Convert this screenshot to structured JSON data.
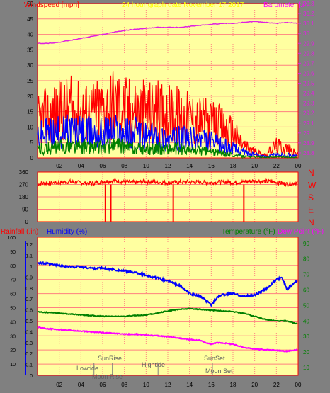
{
  "header": {
    "windspeed_label": "Windspeed [mph]",
    "graph_date": "24 hour graph date   November 17 2017",
    "barometer_label": "Barometer [.in]"
  },
  "colors": {
    "background": "#808080",
    "plot_bg": "#FFFFA0",
    "grid": "#FF8080",
    "wind_gust": "#FF0000",
    "wind_avg": "#0000FF",
    "wind_low": "#008000",
    "barometer": "#E020E0",
    "direction": "#FF0000",
    "humidity": "#0000FF",
    "temperature": "#008000",
    "dewpoint": "#FF00FF",
    "header_yellow": "#FFFF00",
    "header_red": "#FF0000",
    "header_magenta": "#FF00FF"
  },
  "chart_data": [
    {
      "type": "line",
      "name": "wind-barometer",
      "x_ticks": [
        "02",
        "04",
        "06",
        "08",
        "10",
        "12",
        "14",
        "16",
        "18",
        "20",
        "22",
        "00"
      ],
      "x_range_hours": [
        0,
        24
      ],
      "y_left_ticks": [
        "0",
        "5",
        "10",
        "15",
        "20",
        "25",
        "30",
        "35",
        "40",
        "45",
        "50"
      ],
      "y_left_range": [
        0,
        50
      ],
      "y_right_ticks": [
        "28.8",
        "28.9",
        "29",
        "29.1",
        "29.2",
        "29.3",
        "29.4",
        "29.5",
        "29.6",
        "29.7",
        "29.8",
        "29.9",
        "30",
        "30.1",
        "30.2",
        "30.3"
      ],
      "y_right_range": [
        28.75,
        30.3
      ],
      "barometer_series": {
        "x": [
          0,
          1,
          2,
          3,
          4,
          5,
          6,
          7,
          8,
          9,
          10,
          11,
          12,
          13,
          14,
          15,
          16,
          17,
          18,
          19,
          20,
          21,
          22,
          23,
          24
        ],
        "y": [
          29.9,
          29.9,
          29.91,
          29.93,
          29.95,
          29.97,
          29.99,
          30.01,
          30.03,
          30.04,
          30.05,
          30.06,
          30.06,
          30.06,
          30.07,
          30.08,
          30.09,
          30.1,
          30.1,
          30.11,
          30.12,
          30.11,
          30.1,
          30.11,
          30.1
        ]
      },
      "wind_series": [
        {
          "key": "gust",
          "x": [
            0,
            1,
            2,
            3,
            4,
            5,
            6,
            7,
            8,
            9,
            10,
            11,
            12,
            13,
            14,
            15,
            16,
            17,
            18,
            19,
            20,
            21,
            22,
            23,
            24
          ],
          "y": [
            12,
            14,
            15,
            16,
            15,
            15,
            16,
            18,
            16,
            16,
            15,
            15,
            14,
            14,
            13,
            12,
            11,
            10,
            8,
            4,
            2,
            1,
            4,
            3,
            1
          ]
        },
        {
          "key": "avg",
          "x": [
            0,
            1,
            2,
            3,
            4,
            5,
            6,
            7,
            8,
            9,
            10,
            11,
            12,
            13,
            14,
            15,
            16,
            17,
            18,
            19,
            20,
            21,
            22,
            23,
            24
          ],
          "y": [
            7,
            8,
            8,
            9,
            8,
            8,
            8,
            9,
            8,
            8,
            7,
            7,
            6,
            6,
            6,
            6,
            5,
            4,
            3,
            2,
            1,
            0.5,
            1,
            1,
            0.5
          ]
        },
        {
          "key": "low",
          "x": [
            0,
            1,
            2,
            3,
            4,
            5,
            6,
            7,
            8,
            9,
            10,
            11,
            12,
            13,
            14,
            15,
            16,
            17,
            18,
            19,
            20,
            21,
            22,
            23,
            24
          ],
          "y": [
            3,
            3,
            3.5,
            4,
            3.5,
            3.5,
            3.5,
            4,
            3.5,
            3,
            3,
            3,
            3,
            3,
            2.5,
            2.5,
            2,
            1.5,
            1,
            0.5,
            0.3,
            0.2,
            0.3,
            0.2,
            0.2
          ]
        }
      ]
    },
    {
      "type": "line",
      "name": "wind-direction",
      "y_ticks": [
        "0",
        "90",
        "180",
        "270",
        "360"
      ],
      "y_range": [
        0,
        360
      ],
      "compass_labels": [
        "N",
        "W",
        "S",
        "E",
        "N"
      ],
      "series": {
        "x": [
          0,
          1,
          2,
          3,
          4,
          5,
          6,
          7,
          8,
          9,
          10,
          11,
          12,
          13,
          14,
          15,
          16,
          17,
          18,
          19,
          20,
          21,
          22,
          23,
          24
        ],
        "y": [
          275,
          280,
          285,
          290,
          282,
          278,
          290,
          298,
          288,
          285,
          290,
          288,
          282,
          286,
          288,
          285,
          284,
          288,
          284,
          290,
          296,
          292,
          287,
          272,
          285
        ]
      },
      "dropouts_hours": [
        6.25,
        6.75,
        12.5,
        19.0
      ]
    },
    {
      "type": "line",
      "name": "rain-humidity-temperature",
      "header_labels": {
        "rainfall": "Rainfall (.in)",
        "humidity": "Humidity (%)",
        "temperature": "Temperature (°F)",
        "dewpoint": "Dew Point (°F)"
      },
      "humidity_ticks": [
        "10",
        "20",
        "30",
        "40",
        "50",
        "60",
        "70",
        "80",
        "90",
        "100"
      ],
      "rainfall_ticks": [
        "0",
        "0.1",
        "0.2",
        "0.3",
        "0.4",
        "0.5",
        "0.6",
        "0.7",
        "0.8",
        "0.9",
        "1",
        "1.1",
        "1.2"
      ],
      "temperature_ticks": [
        "10",
        "20",
        "30",
        "40",
        "50",
        "60",
        "70",
        "80",
        "90"
      ],
      "humidity_range": [
        2,
        100
      ],
      "temperature_range": [
        5,
        94
      ],
      "humidity": {
        "x": [
          0,
          1,
          2,
          3,
          4,
          5,
          6,
          7,
          8,
          9,
          10,
          11,
          12,
          13,
          14,
          15,
          15.5,
          16,
          16.5,
          17,
          18,
          19,
          20,
          21,
          22,
          22.5,
          23,
          24
        ],
        "y": [
          82,
          81,
          80,
          79,
          79,
          78,
          78,
          77,
          76,
          75,
          73,
          71,
          69,
          66,
          60,
          58,
          55,
          52,
          57,
          59,
          60,
          58,
          59,
          63,
          70,
          71,
          63,
          70
        ]
      },
      "temperature": {
        "x": [
          0,
          1,
          2,
          3,
          4,
          5,
          6,
          7,
          8,
          9,
          10,
          11,
          12,
          13,
          14,
          15,
          16,
          17,
          18,
          19,
          20,
          21,
          22,
          23,
          24
        ],
        "y": [
          46,
          45.5,
          45,
          44.5,
          44,
          43.5,
          43,
          43,
          43,
          43.5,
          44,
          45,
          46.5,
          47.5,
          48,
          47.5,
          47,
          46.5,
          46,
          45,
          43,
          41,
          40,
          40,
          38
        ]
      },
      "dewpoint": {
        "x": [
          0,
          1,
          2,
          3,
          4,
          5,
          6,
          7,
          8,
          9,
          10,
          11,
          12,
          13,
          14,
          15,
          15.5,
          16,
          16.5,
          17,
          18,
          19,
          20,
          21,
          22,
          23,
          24
        ],
        "y": [
          36,
          35,
          34.5,
          34,
          33.5,
          33,
          32.5,
          32,
          31.5,
          31.5,
          31,
          30.5,
          30,
          29,
          28,
          27.5,
          26,
          25,
          26,
          26,
          25,
          23,
          22,
          21.5,
          21,
          20.5,
          21.5
        ]
      },
      "events": [
        {
          "label": "Lowtide",
          "hour": 5.2
        },
        {
          "label": "SunRise",
          "hour": 6.9
        },
        {
          "label": "Moon Rise",
          "hour": 6.9
        },
        {
          "label": "Hightide",
          "hour": 11.1
        },
        {
          "label": "SunSet",
          "hour": 16.1
        },
        {
          "label": "Moon Set",
          "hour": 16.1
        }
      ],
      "x_ticks": [
        "02",
        "04",
        "06",
        "08",
        "10",
        "12",
        "14",
        "16",
        "18",
        "20",
        "22",
        "00"
      ]
    }
  ]
}
